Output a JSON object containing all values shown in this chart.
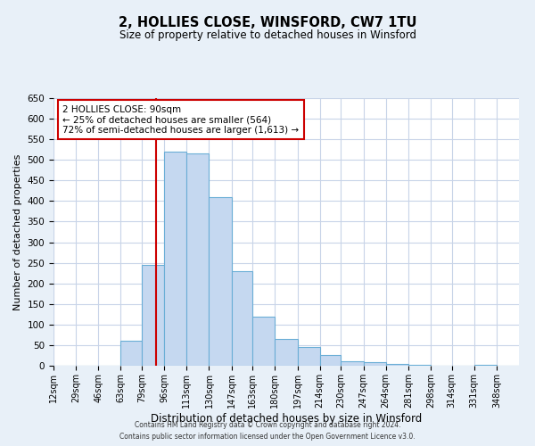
{
  "title": "2, HOLLIES CLOSE, WINSFORD, CW7 1TU",
  "subtitle": "Size of property relative to detached houses in Winsford",
  "xlabel": "Distribution of detached houses by size in Winsford",
  "ylabel": "Number of detached properties",
  "bin_labels": [
    "12sqm",
    "29sqm",
    "46sqm",
    "63sqm",
    "79sqm",
    "96sqm",
    "113sqm",
    "130sqm",
    "147sqm",
    "163sqm",
    "180sqm",
    "197sqm",
    "214sqm",
    "230sqm",
    "247sqm",
    "264sqm",
    "281sqm",
    "298sqm",
    "314sqm",
    "331sqm",
    "348sqm"
  ],
  "bin_edges": [
    12,
    29,
    46,
    63,
    79,
    96,
    113,
    130,
    147,
    163,
    180,
    197,
    214,
    230,
    247,
    264,
    281,
    298,
    314,
    331,
    348,
    365
  ],
  "bar_heights": [
    0,
    0,
    0,
    60,
    245,
    520,
    515,
    410,
    230,
    120,
    65,
    45,
    25,
    10,
    8,
    5,
    2,
    0,
    0,
    3,
    0
  ],
  "bar_color": "#c5d8f0",
  "bar_edge_color": "#6aaed6",
  "vline_x": 90,
  "vline_color": "#cc0000",
  "ylim": [
    0,
    650
  ],
  "yticks": [
    0,
    50,
    100,
    150,
    200,
    250,
    300,
    350,
    400,
    450,
    500,
    550,
    600,
    650
  ],
  "annotation_title": "2 HOLLIES CLOSE: 90sqm",
  "annotation_line1": "← 25% of detached houses are smaller (564)",
  "annotation_line2": "72% of semi-detached houses are larger (1,613) →",
  "annotation_box_color": "#ffffff",
  "annotation_box_edge": "#cc0000",
  "footer_line1": "Contains HM Land Registry data © Crown copyright and database right 2024.",
  "footer_line2": "Contains public sector information licensed under the Open Government Licence v3.0.",
  "background_color": "#e8f0f8",
  "plot_bg_color": "#ffffff",
  "grid_color": "#c8d4e8"
}
